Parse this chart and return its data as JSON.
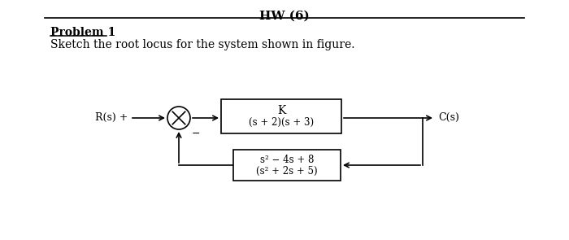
{
  "title": "HW (6)",
  "problem_label": "Problem 1",
  "problem_text": "Sketch the root locus for the system shown in figure.",
  "bg_color": "#ffffff",
  "line_color": "#000000",
  "box1_top": "K",
  "box1_bot": "(s + 2)(s + 3)",
  "box2_top": "s² − 4s + 8",
  "box2_bot": "(s² + 2s + 5)",
  "label_R": "R(s)",
  "label_C": "C(s)",
  "plus_sign": "+",
  "minus_sign": "−"
}
